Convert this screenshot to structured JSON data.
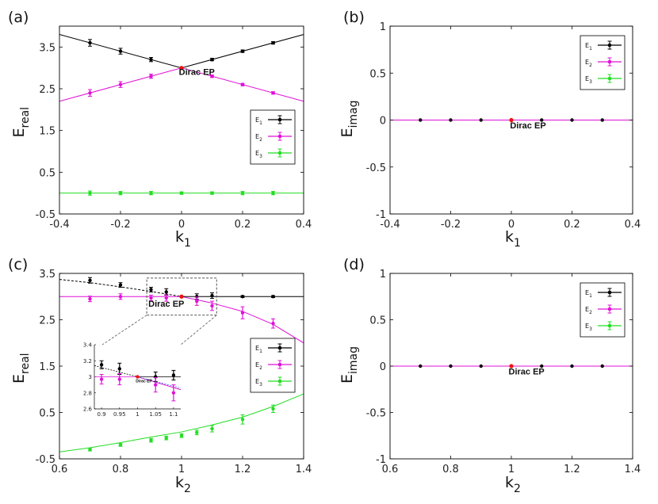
{
  "chart_data": [
    {
      "panel_label": "(a)",
      "type": "line",
      "xlabel": "k",
      "xlabel_sub": "1",
      "ylabel": "E",
      "ylabel_sub": "real",
      "xlim": [
        -0.4,
        0.4
      ],
      "ylim": [
        -0.5,
        4
      ],
      "xticks": [
        -0.4,
        -0.2,
        0,
        0.2,
        0.4
      ],
      "xtick_labels": [
        "-0.4",
        "-0.2",
        "0",
        "0.2",
        "0.4"
      ],
      "yticks": [
        -0.5,
        0.5,
        1.5,
        2.5,
        3.5
      ],
      "ytick_labels": [
        "-0.5",
        "0.5",
        "1.5",
        "2.5",
        "3.5"
      ],
      "legend_position": "right",
      "annotation": {
        "text": "Dirac EP",
        "x": 0.05,
        "y": 2.83
      },
      "ep_point": {
        "x": 0,
        "y": 3
      },
      "curves": [
        {
          "color": "#000000",
          "x": [
            -0.4,
            0,
            0.4
          ],
          "y": [
            3.8,
            3,
            3.8
          ]
        },
        {
          "color": "#e010d8",
          "x": [
            -0.4,
            0,
            0.4
          ],
          "y": [
            2.2,
            3,
            2.2
          ]
        },
        {
          "color": "#22dd22",
          "x": [
            -0.4,
            0.4
          ],
          "y": [
            0,
            0
          ]
        }
      ],
      "series": [
        {
          "name": "E",
          "sub": "1",
          "color": "#000000",
          "x": [
            -0.3,
            -0.2,
            -0.1,
            0.1,
            0.2,
            0.3
          ],
          "y": [
            3.6,
            3.4,
            3.2,
            3.2,
            3.4,
            3.6
          ],
          "err": [
            0.08,
            0.07,
            0.05,
            0.03,
            0.03,
            0.03
          ]
        },
        {
          "name": "E",
          "sub": "2",
          "color": "#e010d8",
          "x": [
            -0.3,
            -0.2,
            -0.1,
            0.1,
            0.2,
            0.3
          ],
          "y": [
            2.4,
            2.6,
            2.8,
            2.8,
            2.6,
            2.4
          ],
          "err": [
            0.08,
            0.07,
            0.05,
            0.03,
            0.03,
            0.03
          ]
        },
        {
          "name": "E",
          "sub": "3",
          "color": "#22dd22",
          "x": [
            -0.3,
            -0.2,
            -0.1,
            0,
            0.1,
            0.2,
            0.3
          ],
          "y": [
            0,
            0,
            0,
            0,
            0,
            0,
            0
          ],
          "err": [
            0.05,
            0.04,
            0.04,
            0.03,
            0.03,
            0.04,
            0.04
          ]
        }
      ]
    },
    {
      "panel_label": "(b)",
      "type": "line",
      "xlabel": "k",
      "xlabel_sub": "1",
      "ylabel": "E",
      "ylabel_sub": "imag",
      "xlim": [
        -0.4,
        0.4
      ],
      "ylim": [
        -1,
        1
      ],
      "xticks": [
        -0.4,
        -0.2,
        0,
        0.2,
        0.4
      ],
      "xtick_labels": [
        "-0.4",
        "-0.2",
        "0",
        "0.2",
        "0.4"
      ],
      "yticks": [
        -1,
        -0.5,
        0,
        0.5,
        1
      ],
      "ytick_labels": [
        "-1",
        "-0.5",
        "0",
        "0.5",
        "1"
      ],
      "legend_position": "top-right",
      "annotation": {
        "text": "Dirac EP",
        "x": 0.055,
        "y": -0.09
      },
      "ep_point": {
        "x": 0,
        "y": 0
      },
      "curves": [
        {
          "color": "#e010d8",
          "x": [
            -0.4,
            0.4
          ],
          "y": [
            0,
            0
          ]
        }
      ],
      "series": [
        {
          "name": "E",
          "sub": "1",
          "color": "#000000",
          "x": [
            -0.3,
            -0.2,
            -0.1,
            0.1,
            0.2,
            0.3
          ],
          "y": [
            0,
            0,
            0,
            0,
            0,
            0
          ],
          "err": []
        },
        {
          "name": "E",
          "sub": "2",
          "color": "#e010d8",
          "x": [],
          "y": [],
          "err": []
        },
        {
          "name": "E",
          "sub": "3",
          "color": "#22dd22",
          "x": [],
          "y": [],
          "err": []
        }
      ]
    },
    {
      "panel_label": "(c)",
      "type": "line",
      "xlabel": "k",
      "xlabel_sub": "2",
      "ylabel": "E",
      "ylabel_sub": "real",
      "xlim": [
        0.6,
        1.4
      ],
      "ylim": [
        -0.5,
        3.5
      ],
      "xticks": [
        0.6,
        0.8,
        1,
        1.2,
        1.4
      ],
      "xtick_labels": [
        "0.6",
        "0.8",
        "1",
        "1.2",
        "1.4"
      ],
      "yticks": [
        -0.5,
        0.5,
        1.5,
        2.5,
        3.5
      ],
      "ytick_labels": [
        "-0.5",
        "0.5",
        "1.5",
        "2.5",
        "3.5"
      ],
      "legend_position": "right",
      "annotation": {
        "text": "Dirac EP",
        "x": 0.95,
        "y": 2.78
      },
      "ep_point": {
        "x": 1,
        "y": 3
      },
      "zoom_box": {
        "x": [
          0.886,
          1.115
        ],
        "y": [
          2.6,
          3.4
        ]
      },
      "curves": [
        {
          "color": "#000000",
          "dash": true,
          "x": [
            0.6,
            0.7,
            0.8,
            0.9,
            1.0
          ],
          "y": [
            3.37,
            3.3,
            3.21,
            3.11,
            3.0
          ]
        },
        {
          "color": "#e010d8",
          "dash": false,
          "x": [
            1.0,
            1.1,
            1.2,
            1.3,
            1.4
          ],
          "y": [
            3.0,
            2.86,
            2.68,
            2.4,
            2.0
          ]
        },
        {
          "color": "#e010d8",
          "dash": false,
          "x": [
            0.6,
            1.0
          ],
          "y": [
            3.0,
            3.0
          ]
        },
        {
          "color": "#000000",
          "dash": false,
          "x": [
            1.0,
            1.4
          ],
          "y": [
            3.0,
            3.0
          ]
        },
        {
          "color": "#22dd22",
          "dash": false,
          "x": [
            0.6,
            0.7,
            0.8,
            0.9,
            1.0,
            1.1,
            1.2,
            1.3,
            1.4
          ],
          "y": [
            -0.35,
            -0.26,
            -0.15,
            -0.03,
            0.08,
            0.23,
            0.4,
            0.63,
            0.9
          ]
        }
      ],
      "series": [
        {
          "name": "E",
          "sub": "1",
          "color": "#000000",
          "x": [
            0.7,
            0.8,
            0.9,
            0.95,
            1.05,
            1.1,
            1.2,
            1.3
          ],
          "y": [
            3.35,
            3.25,
            3.15,
            3.1,
            3.0,
            3.02,
            3.0,
            3.0
          ],
          "err": [
            0.06,
            0.05,
            0.05,
            0.07,
            0.06,
            0.06,
            0.02,
            0.02
          ]
        },
        {
          "name": "E",
          "sub": "2",
          "color": "#e010d8",
          "x": [
            0.7,
            0.8,
            0.9,
            0.95,
            1.05,
            1.1,
            1.2,
            1.3
          ],
          "y": [
            2.95,
            3.0,
            2.97,
            2.97,
            2.9,
            2.8,
            2.65,
            2.42
          ],
          "err": [
            0.06,
            0.06,
            0.06,
            0.07,
            0.09,
            0.1,
            0.13,
            0.1
          ]
        },
        {
          "name": "E",
          "sub": "3",
          "color": "#22dd22",
          "x": [
            0.7,
            0.8,
            0.9,
            0.95,
            1.0,
            1.05,
            1.1,
            1.2,
            1.3
          ],
          "y": [
            -0.3,
            -0.2,
            -0.1,
            -0.05,
            0.0,
            0.07,
            0.15,
            0.35,
            0.58
          ],
          "err": [
            0.03,
            0.03,
            0.04,
            0.04,
            0.04,
            0.05,
            0.07,
            0.1,
            0.08
          ]
        }
      ],
      "inset": {
        "xlim": [
          0.88,
          1.12
        ],
        "ylim": [
          2.6,
          3.4
        ],
        "xticks": [
          0.9,
          0.95,
          1,
          1.05,
          1.1
        ],
        "xtick_labels": [
          "0.9",
          "0.95",
          "1",
          "1.05",
          "1.1"
        ],
        "yticks": [
          2.6,
          2.8,
          3,
          3.2,
          3.4
        ],
        "ytick_labels": [
          "2.6",
          "2.8",
          "3",
          "3.2",
          "3.4"
        ],
        "annotation": {
          "text": "Dirac EP",
          "x": 0.995,
          "y": 2.93
        }
      }
    },
    {
      "panel_label": "(d)",
      "type": "line",
      "xlabel": "k",
      "xlabel_sub": "2",
      "ylabel": "E",
      "ylabel_sub": "imag",
      "xlim": [
        0.6,
        1.4
      ],
      "ylim": [
        -1,
        1
      ],
      "xticks": [
        0.6,
        0.8,
        1,
        1.2,
        1.4
      ],
      "xtick_labels": [
        "0.6",
        "0.8",
        "1",
        "1.2",
        "1.4"
      ],
      "yticks": [
        -1,
        -0.5,
        0,
        0.5,
        1
      ],
      "ytick_labels": [
        "-1",
        "-0.5",
        "0",
        "0.5",
        "1"
      ],
      "legend_position": "top-right",
      "annotation": {
        "text": "Dirac EP",
        "x": 1.05,
        "y": -0.09
      },
      "ep_point": {
        "x": 1,
        "y": 0
      },
      "curves": [
        {
          "color": "#e010d8",
          "x": [
            0.6,
            1.4
          ],
          "y": [
            0,
            0
          ]
        }
      ],
      "series": [
        {
          "name": "E",
          "sub": "1",
          "color": "#000000",
          "x": [
            0.7,
            0.8,
            0.9,
            1.1,
            1.2,
            1.3
          ],
          "y": [
            0,
            0,
            0,
            0,
            0,
            0
          ],
          "err": []
        },
        {
          "name": "E",
          "sub": "2",
          "color": "#e010d8",
          "x": [],
          "y": [],
          "err": []
        },
        {
          "name": "E",
          "sub": "3",
          "color": "#22dd22",
          "x": [],
          "y": [],
          "err": []
        }
      ]
    }
  ]
}
